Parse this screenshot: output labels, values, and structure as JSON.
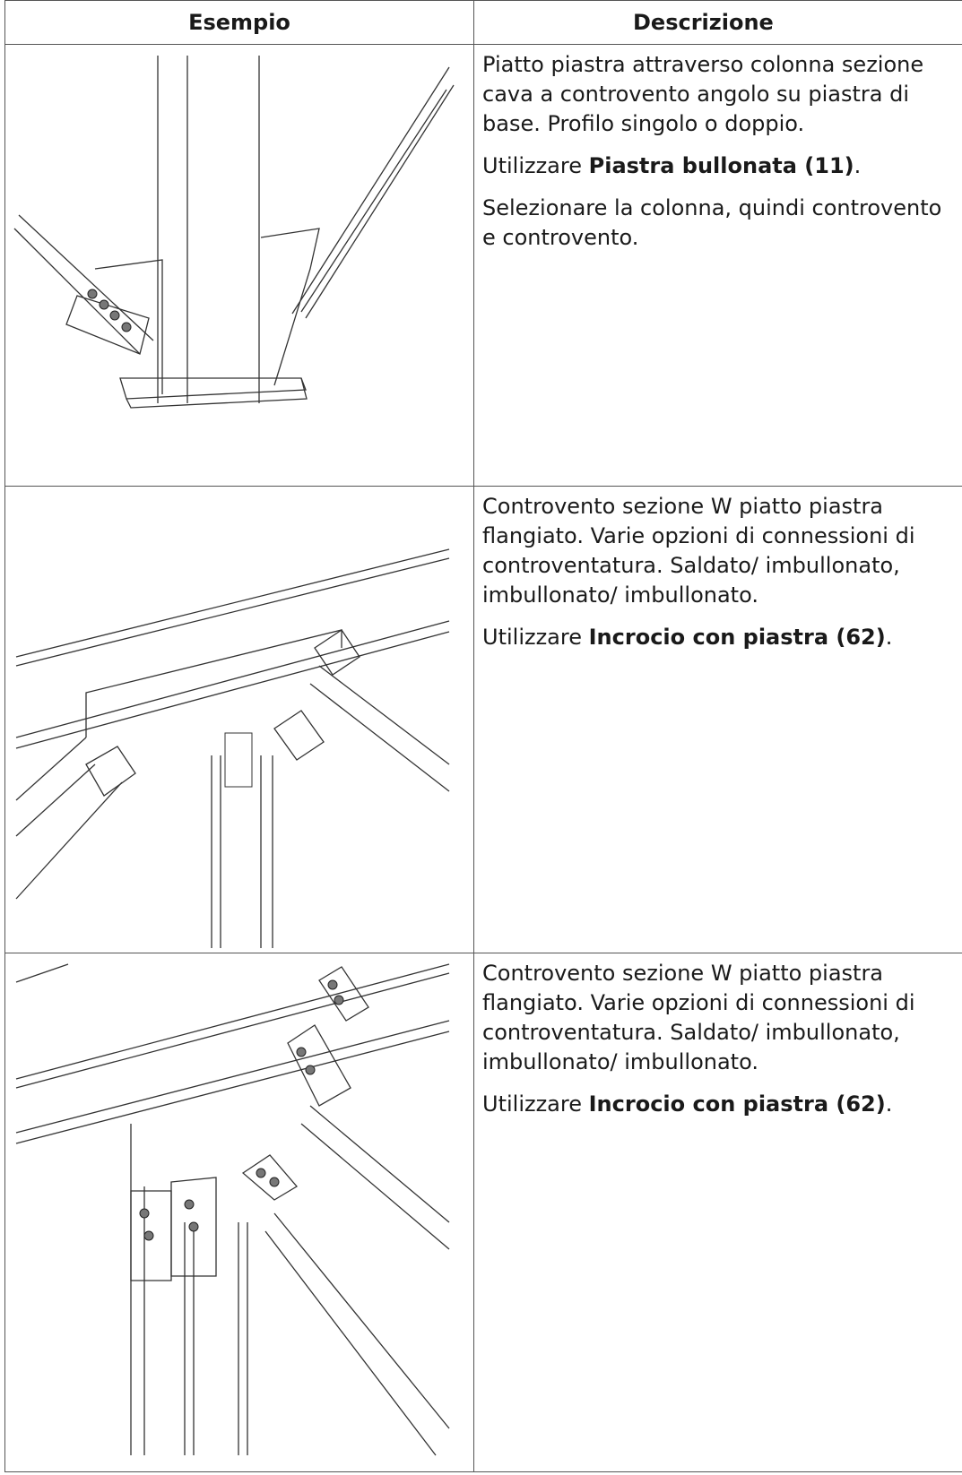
{
  "table": {
    "header": [
      "Esempio",
      "Descrizione"
    ],
    "rows": [
      {
        "paragraphs": [
          [
            {
              "text": "Piatto piastra attraverso colonna sezione cava a controvento angolo su piastra di base. Profilo singolo o doppio."
            }
          ],
          [
            {
              "text": "Utilizzare "
            },
            {
              "text": "Piastra bullonata (11)",
              "bold": true
            },
            {
              "text": "."
            }
          ],
          [
            {
              "text": "Selezionare la colonna, quindi controvento e controvento."
            }
          ]
        ]
      },
      {
        "paragraphs": [
          [
            {
              "text": "Controvento sezione W piatto piastra flangiato. Varie opzioni di connessioni di controventatura. Saldato/ imbullonato, imbullonato/ imbullonato."
            }
          ],
          [
            {
              "text": "Utilizzare "
            },
            {
              "text": "Incrocio con piastra (62)",
              "bold": true
            },
            {
              "text": "."
            }
          ]
        ]
      },
      {
        "paragraphs": [
          [
            {
              "text": "Controvento sezione W piatto piastra flangiato. Varie opzioni di connessioni di controventatura. Saldato/ imbullonato, imbullonato/ imbullonato."
            }
          ],
          [
            {
              "text": "Utilizzare "
            },
            {
              "text": "Incrocio con piastra (62)",
              "bold": true
            },
            {
              "text": "."
            }
          ]
        ]
      }
    ]
  }
}
